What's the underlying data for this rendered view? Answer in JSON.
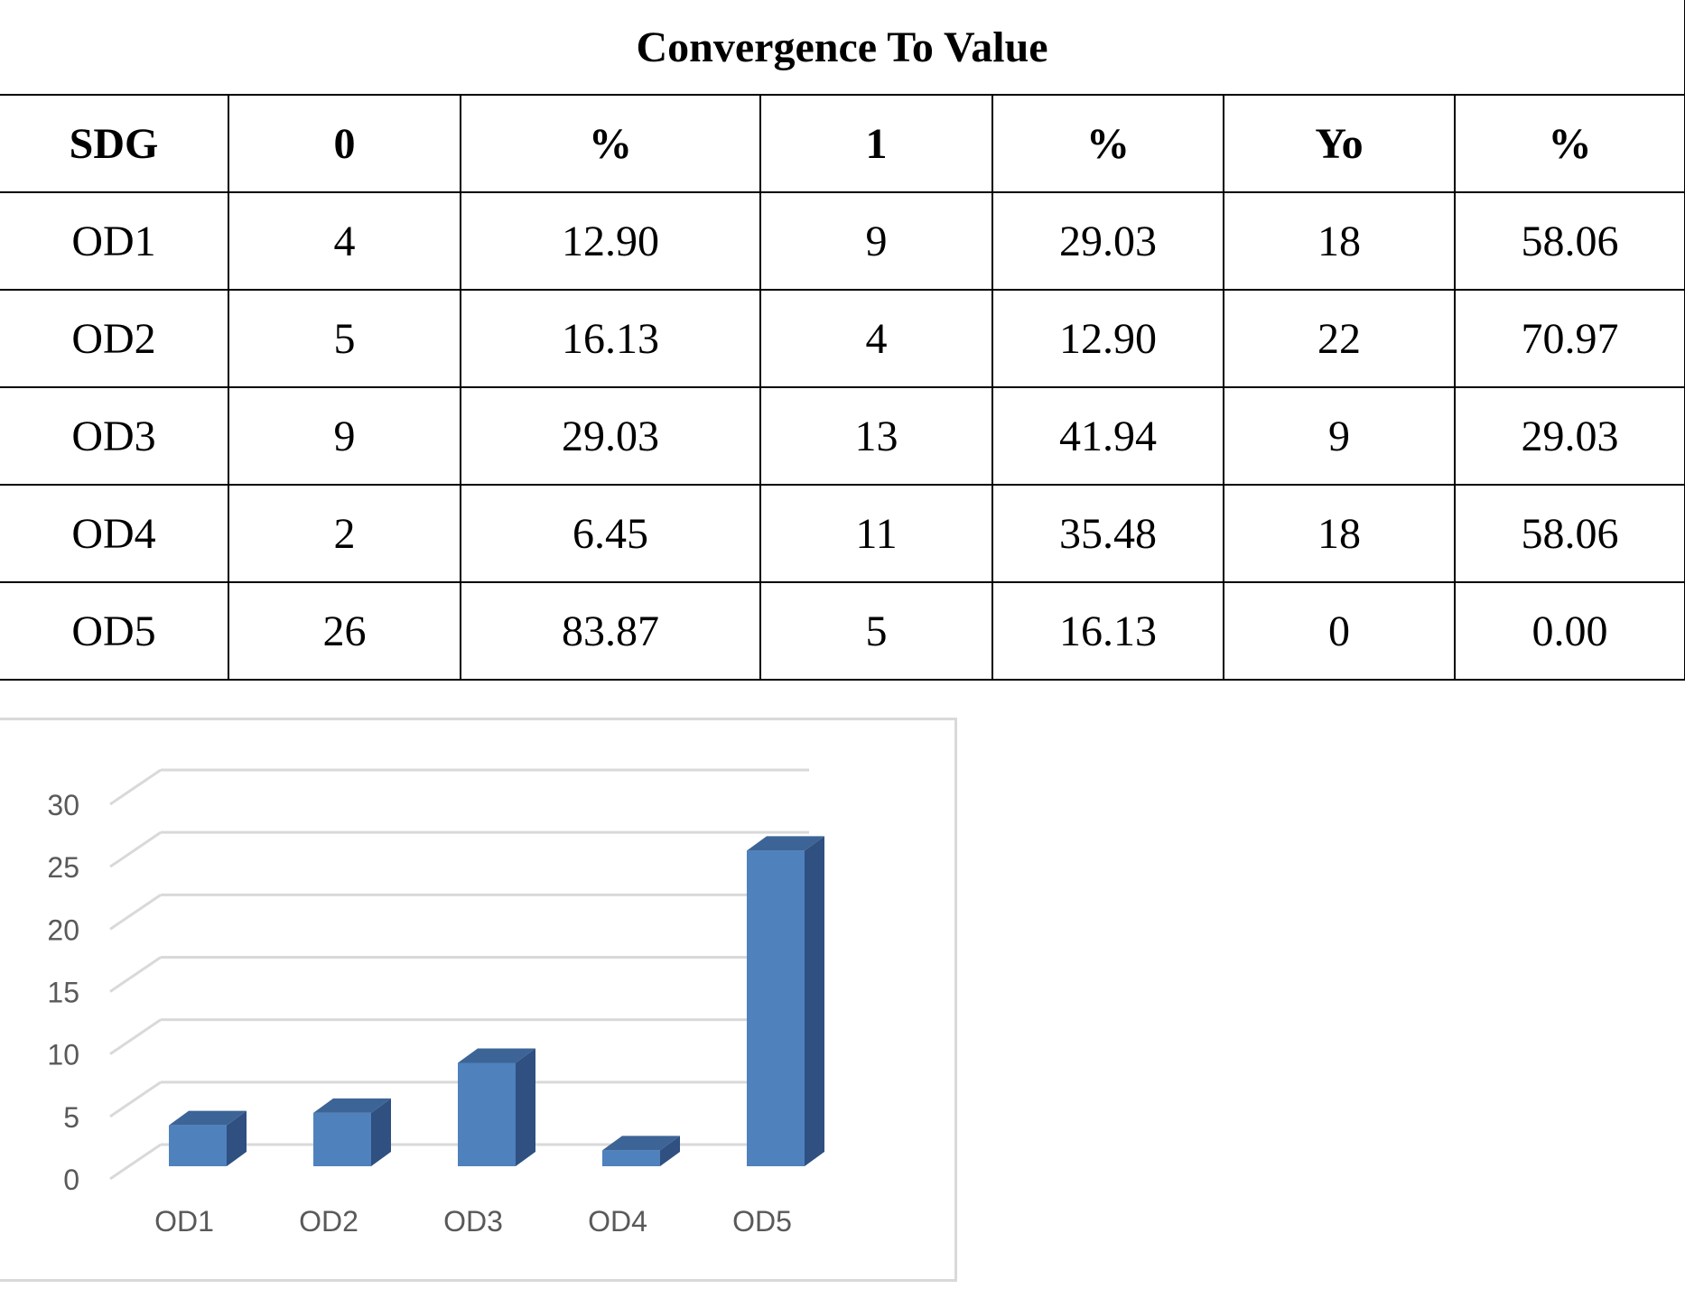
{
  "table": {
    "title": "Convergence To Value",
    "headers": [
      "SDG",
      "0",
      "%",
      "1",
      "%",
      "Yo",
      "%"
    ],
    "rows": [
      [
        "OD1",
        "4",
        "12.90",
        "9",
        "29.03",
        "18",
        "58.06"
      ],
      [
        "OD2",
        "5",
        "16.13",
        "4",
        "12.90",
        "22",
        "70.97"
      ],
      [
        "OD3",
        "9",
        "29.03",
        "13",
        "41.94",
        "9",
        "29.03"
      ],
      [
        "OD4",
        "2",
        "6.45",
        "11",
        "35.48",
        "18",
        "58.06"
      ],
      [
        "OD5",
        "26",
        "83.87",
        "5",
        "16.13",
        "0",
        "0.00"
      ]
    ]
  },
  "chart_data": {
    "type": "bar",
    "categories": [
      "OD1",
      "OD2",
      "OD3",
      "OD4",
      "OD5"
    ],
    "values": [
      4,
      5,
      9,
      2,
      26
    ],
    "title": "",
    "xlabel": "",
    "ylabel": "",
    "ylim": [
      0,
      30
    ],
    "yticks": [
      0,
      5,
      10,
      15,
      20,
      25,
      30
    ],
    "grid": true,
    "legend": "none",
    "style": "3d-column",
    "colors": {
      "bar_front": "#4f81bd",
      "bar_side": "#2f5081",
      "bar_top": "#3d6496",
      "grid": "#d9d9d9",
      "tick_text": "#595959"
    }
  }
}
